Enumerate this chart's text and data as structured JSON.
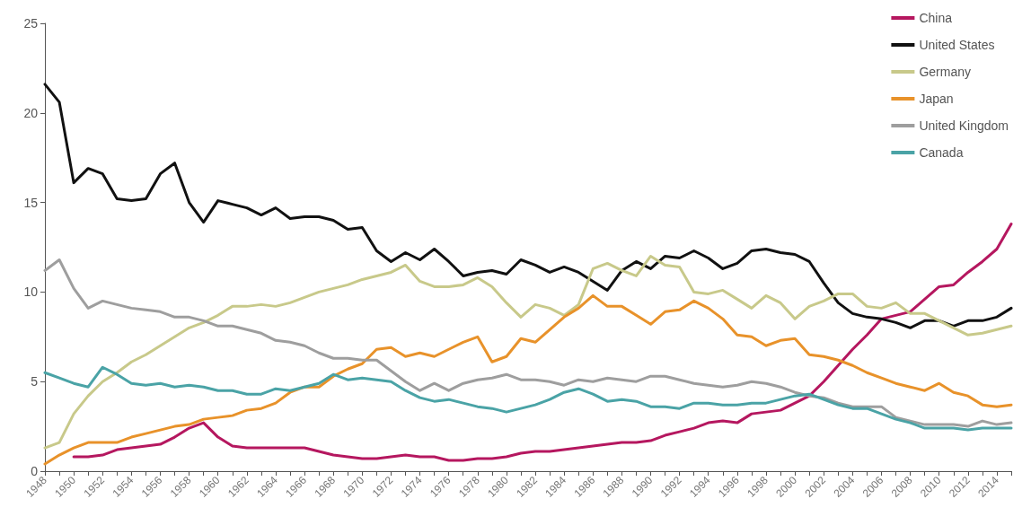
{
  "chart_data": {
    "type": "line",
    "categories": [
      "1948",
      null,
      "1950",
      null,
      "1952",
      null,
      "1954",
      null,
      "1956",
      null,
      "1958",
      null,
      "1960",
      null,
      "1962",
      null,
      "1964",
      null,
      "1966",
      null,
      "1968",
      null,
      "1970",
      null,
      "1972",
      null,
      "1974",
      null,
      "1976",
      null,
      "1978",
      null,
      "1980",
      null,
      "1982",
      null,
      "1984",
      null,
      "1986",
      null,
      "1988",
      null,
      "1990",
      null,
      "1992",
      null,
      "1994",
      null,
      "1996",
      null,
      "1998",
      null,
      "2000",
      null,
      "2002",
      null,
      "2004",
      null,
      "2006",
      null,
      "2008",
      null,
      "2010",
      null,
      "2012",
      null,
      "2014",
      null
    ],
    "ylim": [
      0,
      25
    ],
    "yticks": [
      0,
      5,
      10,
      15,
      20,
      25
    ],
    "grid": false,
    "legend": "top right",
    "marker": "none",
    "line_style": "solid",
    "series": [
      {
        "name": "China",
        "color": "#b5175f",
        "values": [
          null,
          null,
          0.8,
          0.8,
          0.9,
          1.2,
          1.3,
          1.4,
          1.5,
          1.9,
          2.4,
          2.7,
          1.9,
          1.4,
          1.3,
          1.3,
          1.3,
          1.3,
          1.3,
          1.1,
          0.9,
          0.8,
          0.7,
          0.7,
          0.8,
          0.9,
          0.8,
          0.8,
          0.6,
          0.6,
          0.7,
          0.7,
          0.8,
          1.0,
          1.1,
          1.1,
          1.2,
          1.3,
          1.4,
          1.5,
          1.6,
          1.6,
          1.7,
          2.0,
          2.2,
          2.4,
          2.7,
          2.8,
          2.7,
          3.2,
          3.3,
          3.4,
          3.8,
          4.2,
          5.0,
          5.9,
          6.8,
          7.6,
          8.5,
          8.7,
          8.9,
          9.6,
          10.3,
          10.4,
          11.1,
          11.7,
          12.4,
          13.8
        ]
      },
      {
        "name": "United States",
        "color": "#111111",
        "values": [
          21.6,
          20.6,
          16.1,
          16.9,
          16.6,
          15.2,
          15.1,
          15.2,
          16.6,
          17.2,
          15.0,
          13.9,
          15.1,
          14.9,
          14.7,
          14.3,
          14.7,
          14.1,
          14.2,
          14.2,
          14.0,
          13.5,
          13.6,
          12.3,
          11.7,
          12.2,
          11.8,
          12.4,
          11.7,
          10.9,
          11.1,
          11.2,
          11.0,
          11.8,
          11.5,
          11.1,
          11.4,
          11.1,
          10.6,
          10.1,
          11.2,
          11.7,
          11.3,
          12.0,
          11.9,
          12.3,
          11.9,
          11.3,
          11.6,
          12.3,
          12.4,
          12.2,
          12.1,
          11.7,
          10.5,
          9.4,
          8.8,
          8.6,
          8.5,
          8.3,
          8.0,
          8.4,
          8.4,
          8.1,
          8.4,
          8.4,
          8.6,
          9.1
        ]
      },
      {
        "name": "Germany",
        "color": "#c8c98a",
        "values": [
          1.3,
          1.6,
          3.2,
          4.2,
          5.0,
          5.5,
          6.1,
          6.5,
          7.0,
          7.5,
          8.0,
          8.3,
          8.7,
          9.2,
          9.2,
          9.3,
          9.2,
          9.4,
          9.7,
          10.0,
          10.2,
          10.4,
          10.7,
          10.9,
          11.1,
          11.5,
          10.6,
          10.3,
          10.3,
          10.4,
          10.8,
          10.3,
          9.4,
          8.6,
          9.3,
          9.1,
          8.7,
          9.3,
          11.3,
          11.6,
          11.2,
          10.9,
          12.0,
          11.5,
          11.4,
          10.0,
          9.9,
          10.1,
          9.6,
          9.1,
          9.8,
          9.4,
          8.5,
          9.2,
          9.5,
          9.9,
          9.9,
          9.2,
          9.1,
          9.4,
          8.8,
          8.8,
          8.4,
          8.0,
          7.6,
          7.7,
          7.9,
          8.1
        ]
      },
      {
        "name": "Japan",
        "color": "#e8922a",
        "values": [
          0.4,
          0.9,
          1.3,
          1.6,
          1.6,
          1.6,
          1.9,
          2.1,
          2.3,
          2.5,
          2.6,
          2.9,
          3.0,
          3.1,
          3.4,
          3.5,
          3.8,
          4.4,
          4.7,
          4.7,
          5.3,
          5.7,
          6.0,
          6.8,
          6.9,
          6.4,
          6.6,
          6.4,
          6.8,
          7.2,
          7.5,
          6.1,
          6.4,
          7.4,
          7.2,
          7.9,
          8.6,
          9.1,
          9.8,
          9.2,
          9.2,
          8.7,
          8.2,
          8.9,
          9.0,
          9.5,
          9.1,
          8.5,
          7.6,
          7.5,
          7.0,
          7.3,
          7.4,
          6.5,
          6.4,
          6.2,
          5.9,
          5.5,
          5.2,
          4.9,
          4.7,
          4.5,
          4.9,
          4.4,
          4.2,
          3.7,
          3.6,
          3.7
        ]
      },
      {
        "name": "United Kingdom",
        "color": "#9e9e9e",
        "values": [
          11.2,
          11.8,
          10.2,
          9.1,
          9.5,
          9.3,
          9.1,
          9.0,
          8.9,
          8.6,
          8.6,
          8.4,
          8.1,
          8.1,
          7.9,
          7.7,
          7.3,
          7.2,
          7.0,
          6.6,
          6.3,
          6.3,
          6.2,
          6.2,
          5.6,
          5.0,
          4.5,
          4.9,
          4.5,
          4.9,
          5.1,
          5.2,
          5.4,
          5.1,
          5.1,
          5.0,
          4.8,
          5.1,
          5.0,
          5.2,
          5.1,
          5.0,
          5.3,
          5.3,
          5.1,
          4.9,
          4.8,
          4.7,
          4.8,
          5.0,
          4.9,
          4.7,
          4.4,
          4.2,
          4.1,
          3.8,
          3.6,
          3.6,
          3.6,
          3.0,
          2.8,
          2.6,
          2.6,
          2.6,
          2.5,
          2.8,
          2.6,
          2.7
        ]
      },
      {
        "name": "Canada",
        "color": "#4aa3a6",
        "values": [
          5.5,
          5.2,
          4.9,
          4.7,
          5.8,
          5.4,
          4.9,
          4.8,
          4.9,
          4.7,
          4.8,
          4.7,
          4.5,
          4.5,
          4.3,
          4.3,
          4.6,
          4.5,
          4.7,
          4.9,
          5.4,
          5.1,
          5.2,
          5.1,
          5.0,
          4.5,
          4.1,
          3.9,
          4.0,
          3.8,
          3.6,
          3.5,
          3.3,
          3.5,
          3.7,
          4.0,
          4.4,
          4.6,
          4.3,
          3.9,
          4.0,
          3.9,
          3.6,
          3.6,
          3.5,
          3.8,
          3.8,
          3.7,
          3.7,
          3.8,
          3.8,
          4.0,
          4.2,
          4.3,
          4.0,
          3.7,
          3.5,
          3.5,
          3.2,
          2.9,
          2.7,
          2.4,
          2.4,
          2.4,
          2.3,
          2.4,
          2.4,
          2.4
        ]
      }
    ]
  }
}
